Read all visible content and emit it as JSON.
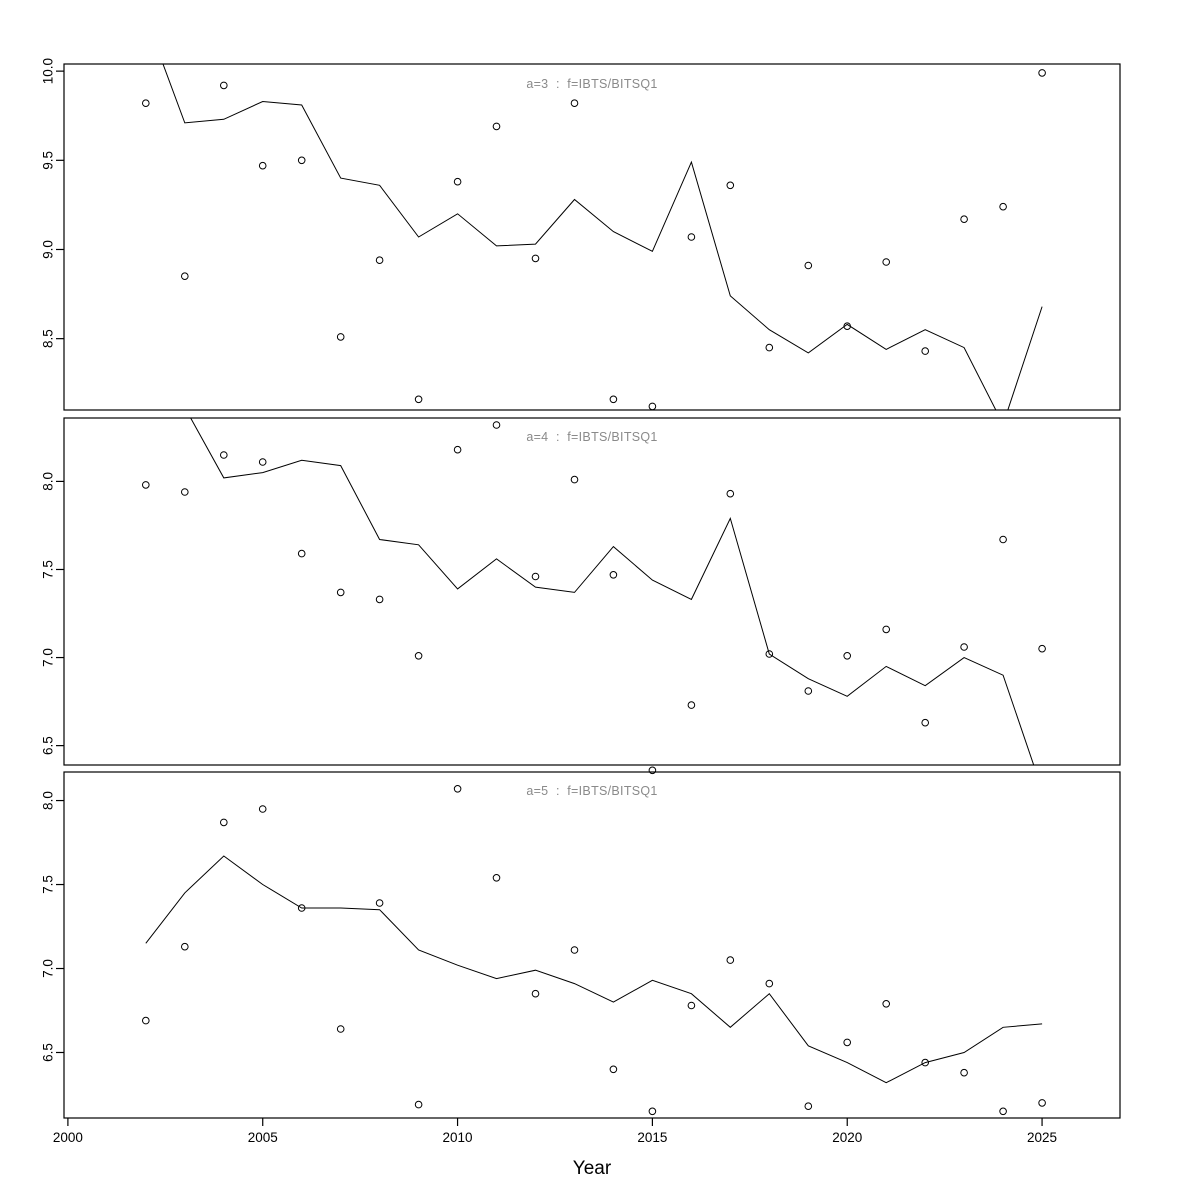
{
  "figure": {
    "xlabel": "Year",
    "x_ticks": [
      2000,
      2005,
      2010,
      2015,
      2020,
      2025
    ],
    "xlim": [
      1999.9,
      2027.0
    ],
    "bg_color": "#ffffff",
    "axis_color": "#000000",
    "title_color": "#8a8a8a",
    "point_symbol": "open-circle"
  },
  "chart_data": [
    {
      "type": "line",
      "title": "a=3  :  f=IBTS/BITSQ1",
      "xlabel": "Year",
      "ylim": [
        8.1,
        10.04
      ],
      "yticks": [
        8.5,
        9.0,
        9.5,
        10.0
      ],
      "x": [
        2002,
        2003,
        2004,
        2005,
        2006,
        2007,
        2008,
        2009,
        2010,
        2011,
        2012,
        2013,
        2014,
        2015,
        2016,
        2017,
        2018,
        2019,
        2020,
        2021,
        2022,
        2023,
        2024,
        2025
      ],
      "series": [
        {
          "name": "observed",
          "style": "points",
          "values": [
            9.82,
            8.85,
            9.92,
            9.47,
            9.5,
            8.51,
            8.94,
            8.16,
            9.38,
            9.69,
            8.95,
            9.82,
            8.16,
            8.12,
            9.07,
            9.36,
            8.45,
            8.91,
            8.57,
            8.93,
            8.43,
            9.17,
            9.24,
            9.99
          ]
        },
        {
          "name": "fitted",
          "style": "line",
          "values": [
            10.3,
            9.71,
            9.73,
            9.83,
            9.81,
            9.4,
            9.36,
            9.07,
            9.2,
            9.02,
            9.03,
            9.28,
            9.1,
            8.99,
            9.49,
            8.74,
            8.55,
            8.42,
            8.58,
            8.44,
            8.55,
            8.45,
            8.02,
            8.68
          ]
        }
      ]
    },
    {
      "type": "line",
      "title": "a=4  :  f=IBTS/BITSQ1",
      "xlabel": "Year",
      "ylim": [
        6.39,
        8.36
      ],
      "yticks": [
        6.5,
        7.0,
        7.5,
        8.0
      ],
      "x": [
        2002,
        2003,
        2004,
        2005,
        2006,
        2007,
        2008,
        2009,
        2010,
        2011,
        2012,
        2013,
        2014,
        2015,
        2016,
        2017,
        2018,
        2019,
        2020,
        2021,
        2022,
        2023,
        2024,
        2025
      ],
      "series": [
        {
          "name": "observed",
          "style": "points",
          "values": [
            7.98,
            7.94,
            8.15,
            8.11,
            7.59,
            7.37,
            7.33,
            7.01,
            8.18,
            8.32,
            7.46,
            8.01,
            7.47,
            6.36,
            6.73,
            7.93,
            7.02,
            6.81,
            7.01,
            7.16,
            6.63,
            7.06,
            7.67,
            7.05
          ]
        },
        {
          "name": "fitted",
          "style": "line",
          "values": [
            8.9,
            8.42,
            8.02,
            8.05,
            8.12,
            8.09,
            7.67,
            7.64,
            7.39,
            7.56,
            7.4,
            7.37,
            7.63,
            7.44,
            7.33,
            7.79,
            7.02,
            6.88,
            6.78,
            6.95,
            6.84,
            7.0,
            6.9,
            6.25
          ]
        }
      ]
    },
    {
      "type": "line",
      "title": "a=5  :  f=IBTS/BITSQ1",
      "xlabel": "Year",
      "ylim": [
        6.11,
        8.17
      ],
      "yticks": [
        6.5,
        7.0,
        7.5,
        8.0
      ],
      "x": [
        2002,
        2003,
        2004,
        2005,
        2006,
        2007,
        2008,
        2009,
        2010,
        2011,
        2012,
        2013,
        2014,
        2015,
        2016,
        2017,
        2018,
        2019,
        2020,
        2021,
        2022,
        2023,
        2024,
        2025
      ],
      "series": [
        {
          "name": "observed",
          "style": "points",
          "values": [
            6.69,
            7.13,
            7.87,
            7.95,
            7.36,
            6.64,
            7.39,
            6.19,
            8.07,
            7.54,
            6.85,
            7.11,
            6.4,
            6.15,
            6.78,
            7.05,
            6.91,
            6.18,
            6.56,
            6.79,
            6.44,
            6.38,
            6.15,
            6.2
          ]
        },
        {
          "name": "fitted",
          "style": "line",
          "values": [
            7.15,
            7.45,
            7.67,
            7.5,
            7.36,
            7.36,
            7.35,
            7.11,
            7.02,
            6.94,
            6.99,
            6.91,
            6.8,
            6.93,
            6.85,
            6.65,
            6.85,
            6.54,
            6.44,
            6.32,
            6.44,
            6.5,
            6.65,
            6.67
          ]
        }
      ]
    }
  ]
}
